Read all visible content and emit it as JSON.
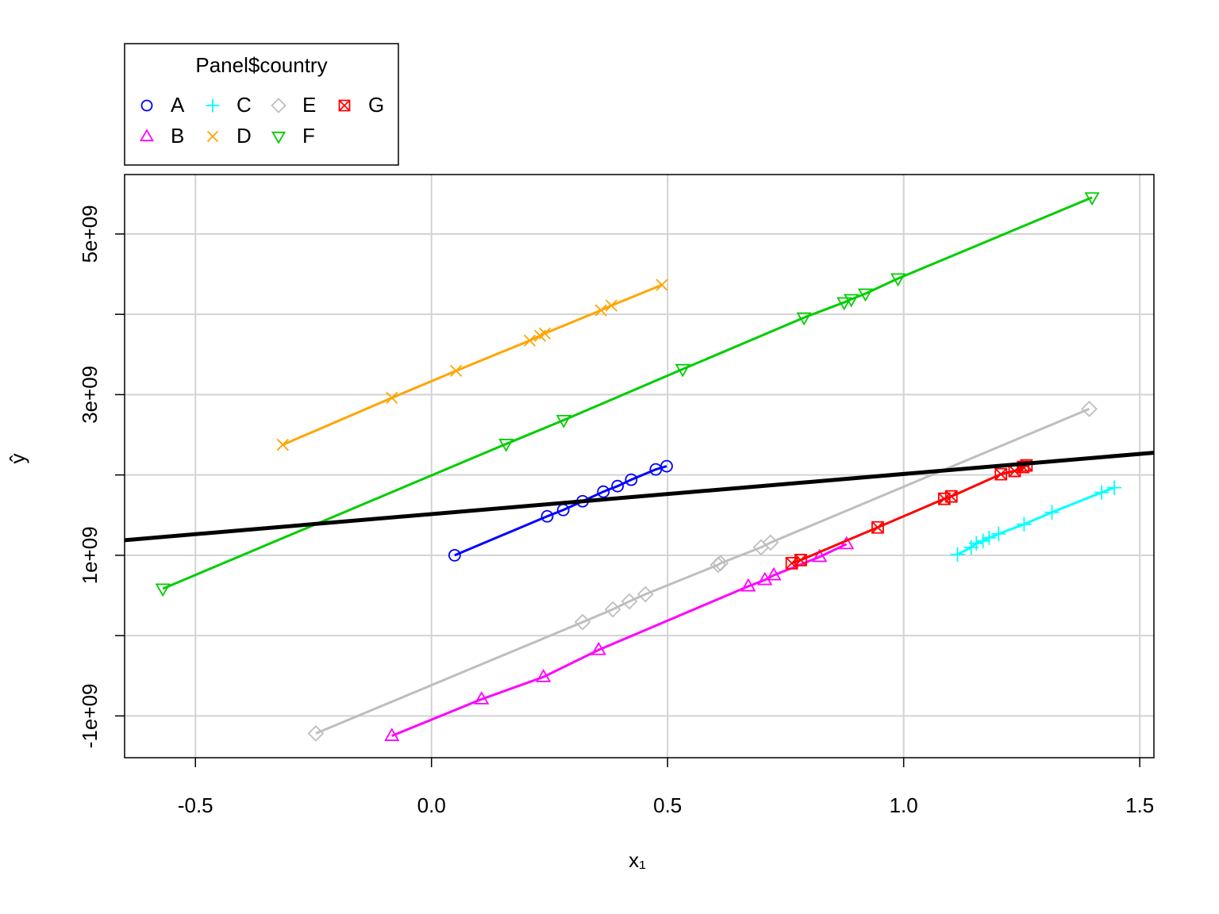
{
  "chart_data": {
    "type": "scatter",
    "xlabel": "x₁",
    "ylabel": "ŷ",
    "xlim": [
      -0.65,
      1.53
    ],
    "ylim": [
      -1520000000.0,
      5740000000.0
    ],
    "xticks": [
      -0.5,
      {
        "value": 0,
        "label": "0.0"
      },
      0.5,
      {
        "value": 1,
        "label": "1.0"
      },
      1.5
    ],
    "yticks": [
      {
        "value": -1000000000.0,
        "label": "-1e+09"
      },
      {
        "value": 0,
        "label": null
      },
      {
        "value": 1000000000.0,
        "label": "1e+09"
      },
      {
        "value": 2000000000.0,
        "label": null
      },
      {
        "value": 3000000000.0,
        "label": "3e+09"
      },
      {
        "value": 4000000000.0,
        "label": null
      },
      {
        "value": 5000000000.0,
        "label": "5e+09"
      }
    ],
    "grid": true,
    "legend": {
      "title": "Panel$country",
      "position": "top-left",
      "ncol": 4
    },
    "series": [
      {
        "name": "A",
        "color": "#0000ff",
        "marker": "circle",
        "x": [
          0.049,
          0.245,
          0.279,
          0.32,
          0.364,
          0.394,
          0.423,
          0.475,
          0.498
        ],
        "values": [
          1000000000.0,
          1485000000.0,
          1564000000.0,
          1673000000.0,
          1792000000.0,
          1861000000.0,
          1941000000.0,
          2069000000.0,
          2109000000.0
        ]
      },
      {
        "name": "B",
        "color": "#ff00ff",
        "marker": "triangle-up",
        "x": [
          -0.084,
          0.106,
          0.237,
          0.354,
          0.671,
          0.706,
          0.725,
          0.822,
          0.879
        ],
        "values": [
          -1248000000.0,
          -792000000.0,
          -515000000.0,
          -178000000.0,
          614000000.0,
          693000000.0,
          752000000.0,
          980000000.0,
          1139000000.0
        ]
      },
      {
        "name": "C",
        "color": "#00ffff",
        "marker": "plus",
        "x": [
          1.114,
          1.143,
          1.154,
          1.168,
          1.181,
          1.201,
          1.255,
          1.314,
          1.419,
          1.446
        ],
        "values": [
          1010000000.0,
          1099000000.0,
          1149000000.0,
          1178000000.0,
          1218000000.0,
          1267000000.0,
          1386000000.0,
          1535000000.0,
          1782000000.0,
          1842000000.0
        ]
      },
      {
        "name": "D",
        "color": "#ffa500",
        "marker": "x",
        "x": [
          -0.315,
          -0.084,
          0.052,
          0.208,
          0.23,
          0.24,
          0.359,
          0.381,
          0.488
        ],
        "values": [
          2376000000.0,
          2960000000.0,
          3297000000.0,
          3673000000.0,
          3733000000.0,
          3762000000.0,
          4050000000.0,
          4109000000.0,
          4366000000.0
        ]
      },
      {
        "name": "E",
        "color": "#bebebe",
        "marker": "diamond",
        "x": [
          -0.245,
          0.32,
          0.384,
          0.419,
          0.453,
          0.607,
          0.612,
          0.698,
          0.718,
          1.393
        ],
        "values": [
          -1218000000.0,
          168000000.0,
          327000000.0,
          426000000.0,
          515000000.0,
          881000000.0,
          901000000.0,
          1099000000.0,
          1158000000.0,
          2822000000.0
        ]
      },
      {
        "name": "F",
        "color": "#00cd00",
        "marker": "triangle-down",
        "x": [
          -0.569,
          0.158,
          0.28,
          0.532,
          0.789,
          0.874,
          0.889,
          0.919,
          0.988,
          1.399
        ],
        "values": [
          584000000.0,
          2386000000.0,
          2683000000.0,
          3317000000.0,
          3960000000.0,
          4149000000.0,
          4188000000.0,
          4257000000.0,
          4446000000.0,
          5455000000.0
        ]
      },
      {
        "name": "G",
        "color": "#ff0000",
        "marker": "square-x",
        "x": [
          0.763,
          0.782,
          0.945,
          1.086,
          1.101,
          1.206,
          1.235,
          1.253,
          1.26
        ],
        "values": [
          901000000.0,
          941000000.0,
          1347000000.0,
          1703000000.0,
          1733000000.0,
          2010000000.0,
          2050000000.0,
          2099000000.0,
          2119000000.0
        ]
      }
    ],
    "lines": [
      {
        "color": "#000000",
        "x": [
          -0.65,
          1.53
        ],
        "values": [
          1188000000.0,
          2277000000.0
        ]
      }
    ]
  }
}
